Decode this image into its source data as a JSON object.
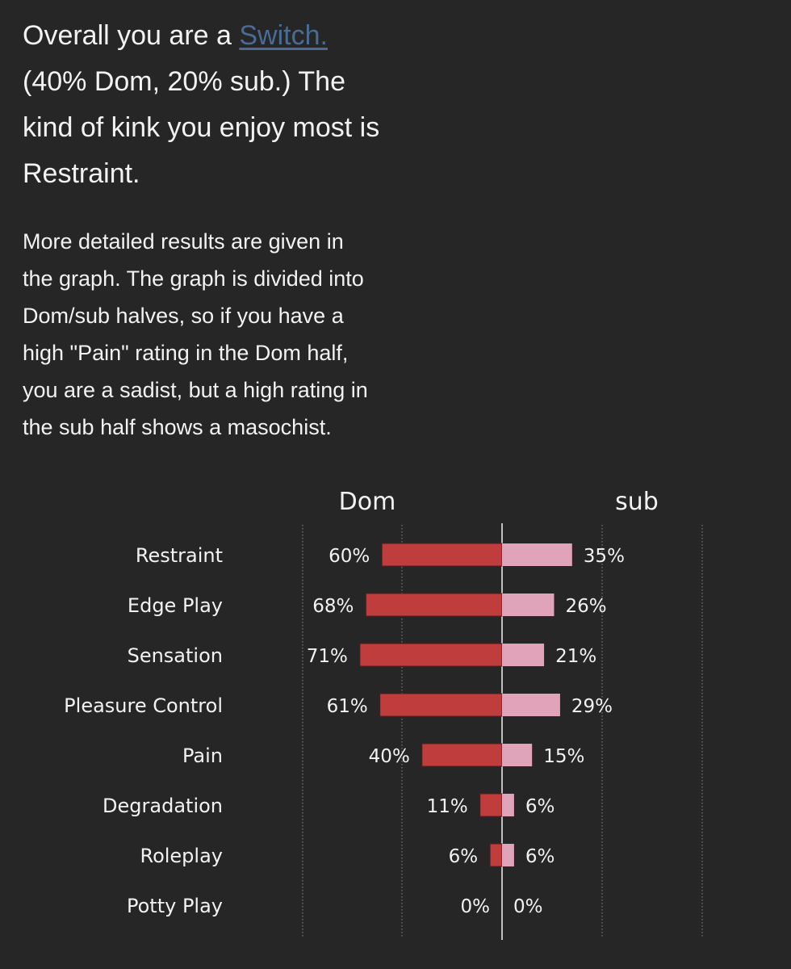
{
  "summary": {
    "prefix": "Overall you are a ",
    "link": "Switch.",
    "line2": "(40% Dom, 20% sub.) The",
    "line3": "kind of kink you enjoy most is",
    "line4": "Restraint."
  },
  "details": {
    "line1": "More detailed results are given in",
    "line2": "the graph. The graph is divided into",
    "line3": "Dom/sub halves, so if you have a",
    "line4": "high \"Pain\" rating in the Dom half,",
    "line5": "you are a sadist, but a high rating in",
    "line6": "the sub half shows a masochist."
  },
  "colors": {
    "dom_bar": "#bf3d3d",
    "sub_bar": "#e0a4ba",
    "text": "#f2f2f2",
    "link": "#4a6b94",
    "background": "#262626"
  },
  "chart_data": {
    "type": "bar",
    "orientation": "horizontal-diverging",
    "series_headers": [
      "Dom",
      "sub"
    ],
    "categories": [
      "Restraint",
      "Edge Play",
      "Sensation",
      "Pleasure Control",
      "Pain",
      "Degradation",
      "Roleplay",
      "Potty Play"
    ],
    "series": [
      {
        "name": "Dom",
        "values": [
          60,
          68,
          71,
          61,
          40,
          11,
          6,
          0
        ],
        "labels": [
          "60%",
          "68%",
          "71%",
          "61%",
          "40%",
          "11%",
          "6%",
          "0%"
        ]
      },
      {
        "name": "sub",
        "values": [
          35,
          26,
          21,
          29,
          15,
          6,
          6,
          0
        ],
        "labels": [
          "35%",
          "26%",
          "21%",
          "29%",
          "15%",
          "6%",
          "6%",
          "0%"
        ]
      }
    ],
    "xlim": [
      0,
      100
    ],
    "grid": true
  }
}
